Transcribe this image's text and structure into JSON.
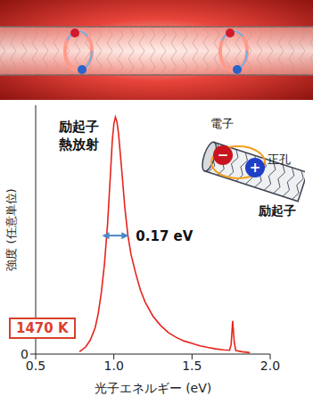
{
  "chart_data": {
    "type": "line",
    "x_label": "光子エネルギー (eV)",
    "y_label": "強度 (任意単位)",
    "color": "#e8231c",
    "x": [
      0.78,
      0.82,
      0.85,
      0.88,
      0.9,
      0.92,
      0.94,
      0.96,
      0.98,
      0.99,
      1.0,
      1.01,
      1.02,
      1.03,
      1.05,
      1.07,
      1.09,
      1.11,
      1.14,
      1.17,
      1.2,
      1.25,
      1.3,
      1.35,
      1.4,
      1.45,
      1.5,
      1.55,
      1.6,
      1.65,
      1.7,
      1.74,
      1.75,
      1.76,
      1.77,
      1.78,
      1.82,
      1.87
    ],
    "values": [
      0.01,
      0.03,
      0.06,
      0.11,
      0.17,
      0.26,
      0.38,
      0.55,
      0.78,
      0.9,
      0.97,
      1.0,
      0.98,
      0.93,
      0.78,
      0.62,
      0.5,
      0.42,
      0.34,
      0.27,
      0.22,
      0.16,
      0.12,
      0.09,
      0.07,
      0.055,
      0.045,
      0.035,
      0.028,
      0.022,
      0.018,
      0.016,
      0.04,
      0.14,
      0.05,
      0.015,
      0.01,
      0.006
    ],
    "xlim": [
      0.5,
      2.0
    ],
    "xticks": [
      0.5,
      {
        "value": 1,
        "label": "1.0"
      },
      1.5,
      {
        "value": 2,
        "label": "2.0"
      }
    ],
    "ylim": [
      0,
      1.05
    ],
    "yticks": [
      0
    ],
    "grid": false,
    "emission_label": "励起子 熱放射",
    "fwhm": {
      "value": 0.17,
      "label": "0.17 eV"
    },
    "temperature_label": "1470 K",
    "inset": {
      "electron": "電子",
      "hole": "正孔",
      "exciton": "励起子",
      "electron_sign": "−",
      "hole_sign": "+"
    }
  }
}
